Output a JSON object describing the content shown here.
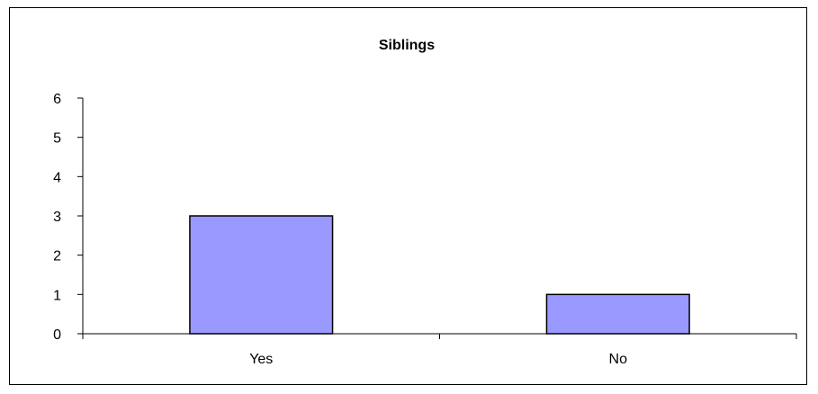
{
  "chart_data": {
    "type": "bar",
    "title": "Siblings",
    "categories": [
      "Yes",
      "No"
    ],
    "values": [
      3,
      1
    ],
    "xlabel": "",
    "ylabel": "",
    "ylim": [
      0,
      6
    ],
    "yticks": [
      "0",
      "1",
      "2",
      "3",
      "4",
      "5",
      "6"
    ],
    "grid": false,
    "legend": "none",
    "bar_color": "#9999ff",
    "bar_outline": "#000000"
  }
}
